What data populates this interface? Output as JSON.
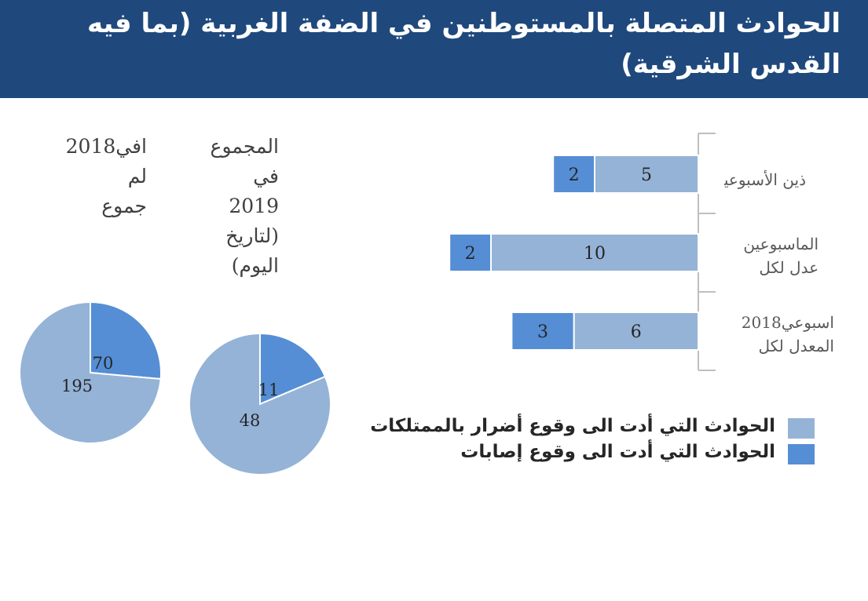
{
  "title": "الحوادث المتصلة بالمستوطنين في الضفة الغربية (بما فيه القدس الشرقية)",
  "colors": {
    "header_bg": "#1f497d",
    "property_damage": "#95b3d7",
    "injuries": "#558ed5"
  },
  "chart_data": [
    {
      "type": "bar",
      "orientation": "horizontal",
      "stacked": true,
      "categories": [
        "ذين الأسبوعين",
        "الم اسبوعين عدل لكل",
        "2018 اسبوعي المعدل لكل"
      ],
      "category_lines": [
        [
          "ذين الأسبوعين"
        ],
        [
          "الماسبوعين",
          "عدل لكل"
        ],
        [
          "اسبوعي2018",
          "المعدل لكل"
        ]
      ],
      "series": [
        {
          "name": "الحوادث التي أدت الى وقوع أضرار بالممتلكات",
          "values": [
            5,
            10,
            6
          ],
          "color": "#95b3d7"
        },
        {
          "name": "الحوادث التي أدت الى وقوع إصابات",
          "values": [
            2,
            2,
            3
          ],
          "color": "#558ed5"
        }
      ],
      "axis": "right",
      "legend_position": "bottom"
    },
    {
      "type": "pie",
      "caption_lines": [
        "افي2018",
        "لم",
        "جموع"
      ],
      "slices": [
        {
          "label": "70",
          "value": 70,
          "color": "#558ed5"
        },
        {
          "label": "195",
          "value": 195,
          "color": "#95b3d7"
        }
      ]
    },
    {
      "type": "pie",
      "caption_lines": [
        "المجموع",
        "في",
        "2019",
        "(لتاريخ",
        "اليوم)"
      ],
      "slices": [
        {
          "label": "11",
          "value": 11,
          "color": "#558ed5"
        },
        {
          "label": "48",
          "value": 48,
          "color": "#95b3d7"
        }
      ]
    }
  ]
}
